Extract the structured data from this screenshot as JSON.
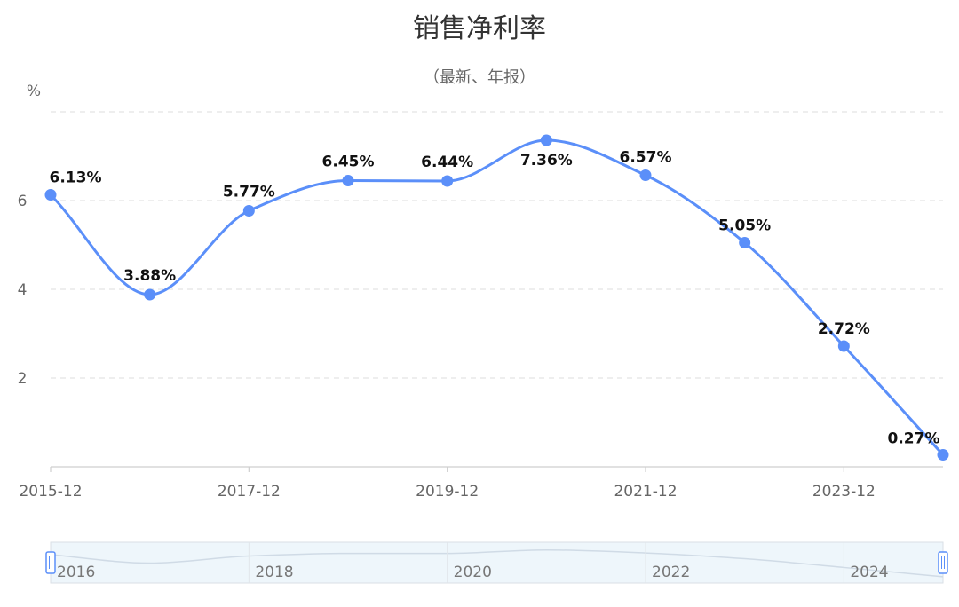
{
  "chart_data": {
    "type": "line",
    "title": "销售净利率",
    "subtitle": "（最新、年报）",
    "yunit": "%",
    "x": [
      "2015-12",
      "2016-12",
      "2017-12",
      "2018-12",
      "2019-12",
      "2020-12",
      "2021-12",
      "2022-12",
      "2023-12",
      "2024-12"
    ],
    "x_tick_labels": [
      "2015-12",
      "2017-12",
      "2019-12",
      "2021-12",
      "2023-12"
    ],
    "y_tick_labels": [
      "2",
      "4",
      "6"
    ],
    "series": [
      {
        "values": [
          6.13,
          3.88,
          5.77,
          6.45,
          6.44,
          7.36,
          6.57,
          5.05,
          2.72,
          0.27
        ],
        "labels": [
          "6.13%",
          "3.88%",
          "5.77%",
          "6.45%",
          "6.44%",
          "7.36%",
          "6.57%",
          "5.05%",
          "2.72%",
          "0.27%"
        ],
        "color": "#5b8ff9"
      }
    ],
    "ylim": [
      0,
      8
    ],
    "grid": true,
    "smooth": true,
    "zoom_slider": {
      "labels": [
        "2016",
        "2018",
        "2020",
        "2022",
        "2024"
      ]
    }
  }
}
